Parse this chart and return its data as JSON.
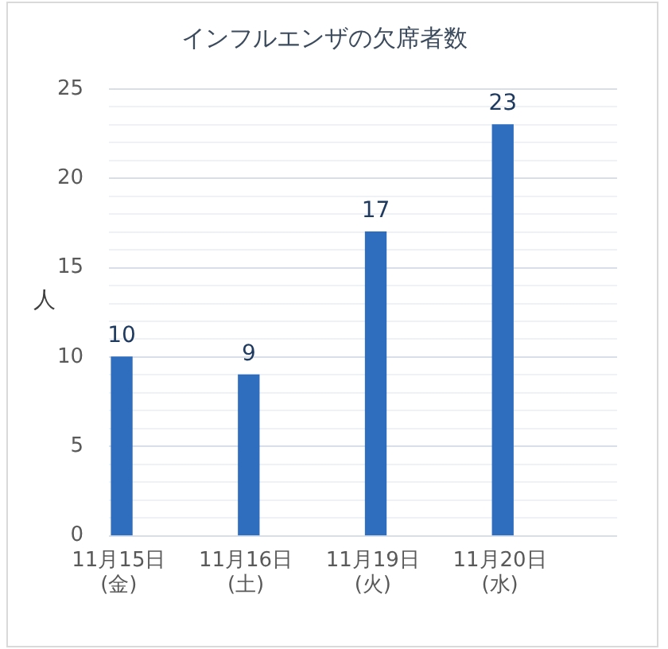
{
  "chart_data": {
    "type": "bar",
    "title": "インフルエンザの欠席者数",
    "ylabel": "人",
    "categories": [
      "11月15日\n(金)",
      "11月16日\n(土)",
      "11月19日\n(火)",
      "11月20日\n(水)"
    ],
    "values": [
      10,
      9,
      17,
      23
    ],
    "color": "#2f6ebf",
    "ylim": [
      0,
      25
    ],
    "yticks": [
      0,
      {
        "value": 1,
        "label": null
      },
      {
        "value": 2,
        "label": null
      },
      {
        "value": 3,
        "label": null
      },
      {
        "value": 4,
        "label": null
      },
      5,
      {
        "value": 6,
        "label": null
      },
      {
        "value": 7,
        "label": null
      },
      {
        "value": 8,
        "label": null
      },
      {
        "value": 9,
        "label": null
      },
      10,
      {
        "value": 11,
        "label": null
      },
      {
        "value": 12,
        "label": null
      },
      {
        "value": 13,
        "label": null
      },
      {
        "value": 14,
        "label": null
      },
      15,
      {
        "value": 16,
        "label": null
      },
      {
        "value": 17,
        "label": null
      },
      {
        "value": 18,
        "label": null
      },
      {
        "value": 19,
        "label": null
      },
      20,
      {
        "value": 21,
        "label": null
      },
      {
        "value": 22,
        "label": null
      },
      {
        "value": 23,
        "label": null
      },
      {
        "value": 24,
        "label": null
      },
      25
    ],
    "grid": "y",
    "data_labels": true
  }
}
